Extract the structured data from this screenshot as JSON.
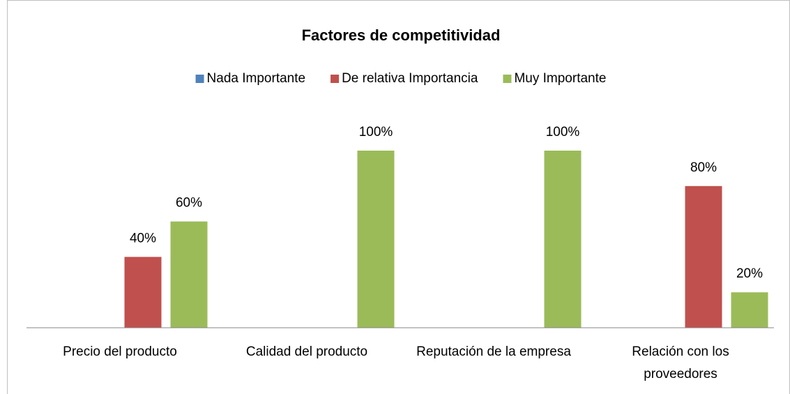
{
  "chart_data": {
    "type": "bar",
    "title": "Factores de competitividad",
    "categories": [
      "Precio del producto",
      "Calidad del producto",
      "Reputación de la empresa",
      "Relación con los proveedores"
    ],
    "series": [
      {
        "name": "Nada Importante",
        "color": "#4f81bd",
        "values": [
          0,
          0,
          0,
          0
        ],
        "value_labels": [
          null,
          null,
          null,
          null
        ]
      },
      {
        "name": "De relativa Importancia",
        "color": "#c0504d",
        "values": [
          40,
          0,
          0,
          80
        ],
        "value_labels": [
          "40%",
          null,
          null,
          "80%"
        ]
      },
      {
        "name": "Muy Importante",
        "color": "#9bbb59",
        "values": [
          60,
          100,
          100,
          20
        ],
        "value_labels": [
          "60%",
          "100%",
          "100%",
          "20%"
        ]
      }
    ],
    "ylim": [
      0,
      100
    ],
    "legend": "top"
  }
}
